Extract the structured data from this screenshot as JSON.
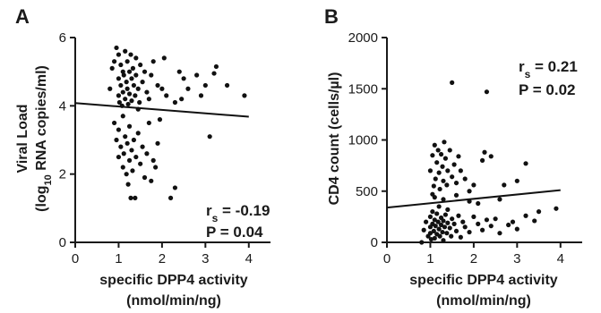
{
  "chart_data": [
    {
      "panel": "A",
      "type": "scatter",
      "xlabel_line1": "specific DPP4 activity",
      "xlabel_line2": "(nmol/min/ng)",
      "ylabel_line1": "Viral Load",
      "ylabel_line2_prefix": "(log",
      "ylabel_line2_sub": "10",
      "ylabel_line2_suffix": " RNA copies/ml)",
      "xlim": [
        0,
        4.5
      ],
      "ylim": [
        0,
        6
      ],
      "xticks": [
        "0",
        "1",
        "2",
        "3",
        "4"
      ],
      "yticks": [
        "0",
        "2",
        "4",
        "6"
      ],
      "r_label": "r",
      "r_sub": "s",
      "r_value": " = -0.19",
      "p_text": "P = 0.04",
      "fit_line": [
        [
          0,
          4.08
        ],
        [
          4.0,
          3.68
        ]
      ],
      "points": [
        [
          0.8,
          4.5
        ],
        [
          0.85,
          5.1
        ],
        [
          0.9,
          5.3
        ],
        [
          0.95,
          5.7
        ],
        [
          1.0,
          4.3
        ],
        [
          1.0,
          4.8
        ],
        [
          1.0,
          5.5
        ],
        [
          1.02,
          4.1
        ],
        [
          1.05,
          5.2
        ],
        [
          1.05,
          4.6
        ],
        [
          1.08,
          4.0
        ],
        [
          1.1,
          5.0
        ],
        [
          1.1,
          4.4
        ],
        [
          1.12,
          4.9
        ],
        [
          1.15,
          5.6
        ],
        [
          1.15,
          4.2
        ],
        [
          1.18,
          4.7
        ],
        [
          1.2,
          5.3
        ],
        [
          1.2,
          4.5
        ],
        [
          1.22,
          4.05
        ],
        [
          1.25,
          5.0
        ],
        [
          1.25,
          4.35
        ],
        [
          1.28,
          5.5
        ],
        [
          1.3,
          4.8
        ],
        [
          1.3,
          4.15
        ],
        [
          1.33,
          5.1
        ],
        [
          1.35,
          4.6
        ],
        [
          1.38,
          4.3
        ],
        [
          1.4,
          5.4
        ],
        [
          1.4,
          4.9
        ],
        [
          1.45,
          4.5
        ],
        [
          1.48,
          4.1
        ],
        [
          1.5,
          5.2
        ],
        [
          1.55,
          4.7
        ],
        [
          1.6,
          5.0
        ],
        [
          1.65,
          4.4
        ],
        [
          1.7,
          4.2
        ],
        [
          1.75,
          4.9
        ],
        [
          1.8,
          5.3
        ],
        [
          1.9,
          4.6
        ],
        [
          2.0,
          4.5
        ],
        [
          2.05,
          5.4
        ],
        [
          2.1,
          4.3
        ],
        [
          2.3,
          4.1
        ],
        [
          2.4,
          5.0
        ],
        [
          2.5,
          4.8
        ],
        [
          2.6,
          4.5
        ],
        [
          2.8,
          4.9
        ],
        [
          2.9,
          4.3
        ],
        [
          3.0,
          4.6
        ],
        [
          3.2,
          4.95
        ],
        [
          3.25,
          5.15
        ],
        [
          3.5,
          4.6
        ],
        [
          3.9,
          4.3
        ],
        [
          2.45,
          4.2
        ],
        [
          0.9,
          3.5
        ],
        [
          0.95,
          3.0
        ],
        [
          1.0,
          2.5
        ],
        [
          1.0,
          3.3
        ],
        [
          1.05,
          2.8
        ],
        [
          1.1,
          2.2
        ],
        [
          1.1,
          3.7
        ],
        [
          1.12,
          2.6
        ],
        [
          1.15,
          3.1
        ],
        [
          1.18,
          2.0
        ],
        [
          1.2,
          2.9
        ],
        [
          1.22,
          1.7
        ],
        [
          1.25,
          3.4
        ],
        [
          1.25,
          2.4
        ],
        [
          1.28,
          1.3
        ],
        [
          1.3,
          2.7
        ],
        [
          1.32,
          2.1
        ],
        [
          1.35,
          3.0
        ],
        [
          1.38,
          1.3
        ],
        [
          1.4,
          2.5
        ],
        [
          1.45,
          3.2
        ],
        [
          1.5,
          2.3
        ],
        [
          1.55,
          2.8
        ],
        [
          1.6,
          1.9
        ],
        [
          1.65,
          2.6
        ],
        [
          1.7,
          3.5
        ],
        [
          1.75,
          1.8
        ],
        [
          1.8,
          2.4
        ],
        [
          1.85,
          2.2
        ],
        [
          1.9,
          2.9
        ],
        [
          1.95,
          3.6
        ],
        [
          2.2,
          1.3
        ],
        [
          2.3,
          1.6
        ],
        [
          3.1,
          3.1
        ],
        [
          1.45,
          3.9
        ]
      ]
    },
    {
      "panel": "B",
      "type": "scatter",
      "xlabel_line1": "specific DPP4 activity",
      "xlabel_line2": "(nmol/min/ng)",
      "ylabel": "CD4 count (cells/µl)",
      "xlim": [
        0,
        4.5
      ],
      "ylim": [
        0,
        2000
      ],
      "xticks": [
        "0",
        "1",
        "2",
        "3",
        "4"
      ],
      "yticks": [
        "0",
        "500",
        "1000",
        "1500",
        "2000"
      ],
      "r_label": "r",
      "r_sub": "s",
      "r_value": " = 0.21",
      "p_text": "P = 0.02",
      "fit_line": [
        [
          0,
          340
        ],
        [
          4.0,
          510
        ]
      ],
      "points": [
        [
          0.8,
          0
        ],
        [
          0.85,
          120
        ],
        [
          0.9,
          200
        ],
        [
          0.95,
          60
        ],
        [
          1.0,
          150
        ],
        [
          1.0,
          250
        ],
        [
          1.0,
          90
        ],
        [
          1.02,
          30
        ],
        [
          1.05,
          180
        ],
        [
          1.05,
          300
        ],
        [
          1.08,
          110
        ],
        [
          1.1,
          220
        ],
        [
          1.1,
          40
        ],
        [
          1.12,
          160
        ],
        [
          1.15,
          280
        ],
        [
          1.15,
          80
        ],
        [
          1.18,
          200
        ],
        [
          1.2,
          130
        ],
        [
          1.2,
          350
        ],
        [
          1.22,
          60
        ],
        [
          1.25,
          240
        ],
        [
          1.25,
          170
        ],
        [
          1.28,
          100
        ],
        [
          1.3,
          210
        ],
        [
          1.3,
          20
        ],
        [
          1.33,
          150
        ],
        [
          1.35,
          270
        ],
        [
          1.38,
          90
        ],
        [
          1.4,
          190
        ],
        [
          1.4,
          320
        ],
        [
          1.45,
          140
        ],
        [
          1.48,
          60
        ],
        [
          1.5,
          230
        ],
        [
          1.55,
          180
        ],
        [
          1.6,
          110
        ],
        [
          1.65,
          260
        ],
        [
          1.7,
          50
        ],
        [
          1.75,
          200
        ],
        [
          1.8,
          150
        ],
        [
          1.9,
          100
        ],
        [
          2.0,
          250
        ],
        [
          2.1,
          180
        ],
        [
          2.2,
          120
        ],
        [
          2.3,
          220
        ],
        [
          2.4,
          160
        ],
        [
          2.5,
          230
        ],
        [
          2.6,
          90
        ],
        [
          2.8,
          170
        ],
        [
          2.9,
          200
        ],
        [
          3.0,
          130
        ],
        [
          3.2,
          260
        ],
        [
          3.5,
          300
        ],
        [
          3.9,
          330
        ],
        [
          1.05,
          470
        ],
        [
          1.0,
          700
        ],
        [
          1.05,
          850
        ],
        [
          1.08,
          550
        ],
        [
          1.1,
          950
        ],
        [
          1.12,
          620
        ],
        [
          1.15,
          780
        ],
        [
          1.18,
          900
        ],
        [
          1.2,
          680
        ],
        [
          1.22,
          520
        ],
        [
          1.25,
          860
        ],
        [
          1.28,
          740
        ],
        [
          1.3,
          600
        ],
        [
          1.32,
          980
        ],
        [
          1.35,
          820
        ],
        [
          1.38,
          560
        ],
        [
          1.4,
          700
        ],
        [
          1.45,
          900
        ],
        [
          1.5,
          640
        ],
        [
          1.55,
          760
        ],
        [
          1.6,
          580
        ],
        [
          1.65,
          840
        ],
        [
          1.7,
          700
        ],
        [
          1.8,
          620
        ],
        [
          1.9,
          500
        ],
        [
          2.0,
          560
        ],
        [
          2.2,
          800
        ],
        [
          2.25,
          880
        ],
        [
          2.4,
          840
        ],
        [
          2.7,
          560
        ],
        [
          3.0,
          600
        ],
        [
          3.2,
          770
        ],
        [
          1.1,
          440
        ],
        [
          1.3,
          420
        ],
        [
          1.6,
          460
        ],
        [
          1.5,
          1560
        ],
        [
          2.3,
          1470
        ],
        [
          1.9,
          400
        ],
        [
          2.6,
          420
        ],
        [
          2.1,
          380
        ],
        [
          3.4,
          210
        ]
      ]
    }
  ]
}
